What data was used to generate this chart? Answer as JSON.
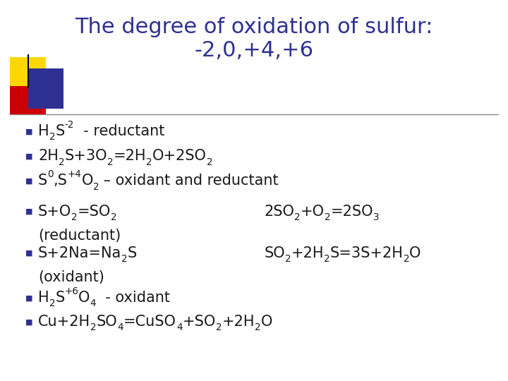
{
  "title_line1": "The degree of oxidation of sulfur:",
  "title_line2": "-2,0,+4,+6",
  "title_color": "#2E3192",
  "bg_color": "#FFFFFF",
  "bullet_color": "#2E3192",
  "text_color": "#1a1a1a",
  "separator_color": "#999999",
  "bullet_items": [
    {
      "type": "mixed",
      "parts": [
        {
          "text": "H",
          "style": "normal"
        },
        {
          "text": "2",
          "style": "sub"
        },
        {
          "text": "S",
          "style": "normal"
        },
        {
          "text": "-2",
          "style": "super"
        },
        {
          "text": "  - reductant",
          "style": "normal"
        }
      ]
    },
    {
      "type": "mixed",
      "parts": [
        {
          "text": "2H",
          "style": "normal"
        },
        {
          "text": "2",
          "style": "sub"
        },
        {
          "text": "S+3O",
          "style": "normal"
        },
        {
          "text": "2",
          "style": "sub"
        },
        {
          "text": "=2H",
          "style": "normal"
        },
        {
          "text": "2",
          "style": "sub"
        },
        {
          "text": "O+2SO",
          "style": "normal"
        },
        {
          "text": "2",
          "style": "sub"
        }
      ]
    },
    {
      "type": "mixed",
      "parts": [
        {
          "text": "S",
          "style": "normal"
        },
        {
          "text": "0",
          "style": "super"
        },
        {
          "text": ",S",
          "style": "normal"
        },
        {
          "text": "+4",
          "style": "super"
        },
        {
          "text": "O",
          "style": "normal"
        },
        {
          "text": "2",
          "style": "sub"
        },
        {
          "text": " – oxidant and reductant",
          "style": "normal"
        }
      ]
    },
    {
      "type": "mixed_twocol",
      "left_parts": [
        {
          "text": "S+O",
          "style": "normal"
        },
        {
          "text": "2",
          "style": "sub"
        },
        {
          "text": "=SO",
          "style": "normal"
        },
        {
          "text": "2",
          "style": "sub"
        }
      ],
      "right_parts": [
        {
          "text": "2SO",
          "style": "normal"
        },
        {
          "text": "2",
          "style": "sub"
        },
        {
          "text": "+O",
          "style": "normal"
        },
        {
          "text": "2",
          "style": "sub"
        },
        {
          "text": "=2SO",
          "style": "normal"
        },
        {
          "text": "3",
          "style": "sub"
        }
      ],
      "continuation": "(reductant)"
    },
    {
      "type": "mixed_twocol",
      "left_parts": [
        {
          "text": "S+2Na=Na",
          "style": "normal"
        },
        {
          "text": "2",
          "style": "sub"
        },
        {
          "text": "S",
          "style": "normal"
        }
      ],
      "right_parts": [
        {
          "text": "SO",
          "style": "normal"
        },
        {
          "text": "2",
          "style": "sub"
        },
        {
          "text": "+2H",
          "style": "normal"
        },
        {
          "text": "2",
          "style": "sub"
        },
        {
          "text": "S=3S+2H",
          "style": "normal"
        },
        {
          "text": "2",
          "style": "sub"
        },
        {
          "text": "O",
          "style": "normal"
        }
      ],
      "continuation": "(oxidant)"
    },
    {
      "type": "mixed",
      "parts": [
        {
          "text": "H",
          "style": "normal"
        },
        {
          "text": "2",
          "style": "sub"
        },
        {
          "text": "S",
          "style": "normal"
        },
        {
          "text": "+6",
          "style": "super"
        },
        {
          "text": "O",
          "style": "normal"
        },
        {
          "text": "4",
          "style": "sub"
        },
        {
          "text": "  - oxidant",
          "style": "normal"
        }
      ]
    },
    {
      "type": "mixed",
      "parts": [
        {
          "text": "Cu+2H",
          "style": "normal"
        },
        {
          "text": "2",
          "style": "sub"
        },
        {
          "text": "SO",
          "style": "normal"
        },
        {
          "text": "4",
          "style": "sub"
        },
        {
          "text": "=CuSO",
          "style": "normal"
        },
        {
          "text": "4",
          "style": "sub"
        },
        {
          "text": "+SO",
          "style": "normal"
        },
        {
          "text": "2",
          "style": "sub"
        },
        {
          "text": "+2H",
          "style": "normal"
        },
        {
          "text": "2",
          "style": "sub"
        },
        {
          "text": "O",
          "style": "normal"
        }
      ]
    }
  ]
}
